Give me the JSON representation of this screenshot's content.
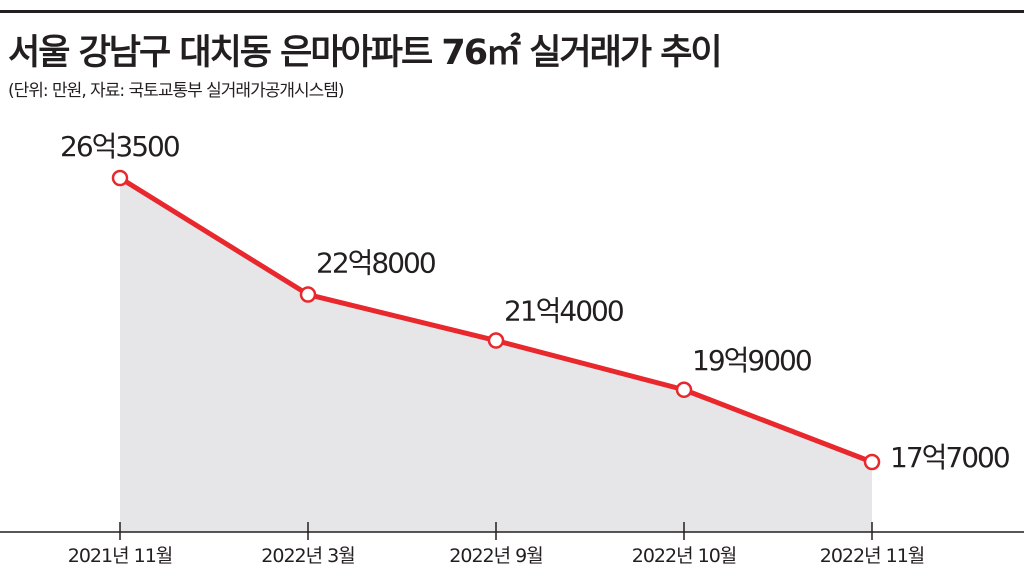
{
  "title": "서울 강남구 대치동 은마아파트 76㎡ 실거래가 추이",
  "subtitle": "(단위: 만원, 자료: 국토교통부 실거래가공개시스템)",
  "colors": {
    "line": "#e8282d",
    "area": "#e6e6e8",
    "axis": "#231f20",
    "marker_fill": "#ffffff"
  },
  "chart_data": {
    "type": "line",
    "categories": [
      "2021년 11월",
      "2022년 3월",
      "2022년 9월",
      "2022년 10월",
      "2022년 11월"
    ],
    "values": [
      263500,
      228000,
      214000,
      199000,
      177000
    ],
    "data_labels": [
      "26억3500",
      "22억8000",
      "21억4000",
      "19억9000",
      "17억7000"
    ],
    "area_fill": true,
    "grid": false,
    "legend": "none"
  }
}
